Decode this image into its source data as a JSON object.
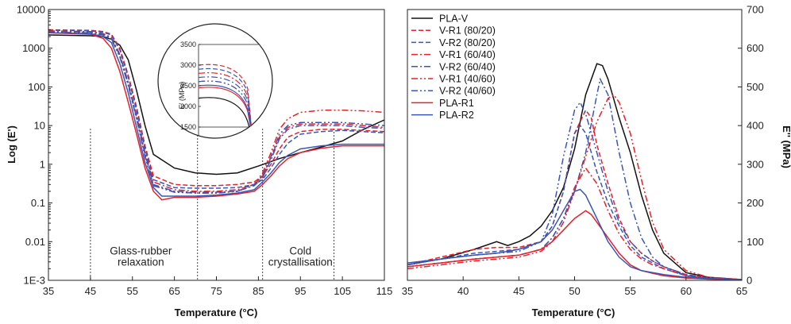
{
  "colors": {
    "pla_v": "#111111",
    "red": "#e8202a",
    "blue": "#3a55b4"
  },
  "chart_data": [
    {
      "type": "line",
      "xlabel": "Temperature (°C)",
      "ylabel": "Log (E')",
      "xlim": [
        35,
        115
      ],
      "ylim_log": [
        0.001,
        10000
      ],
      "y_scale": "log",
      "x_ticks": [
        35,
        45,
        55,
        65,
        75,
        85,
        95,
        105,
        115
      ],
      "y_ticks": [
        {
          "v": 0.001,
          "label": "1E-3"
        },
        {
          "v": 0.01,
          "label": "0.01"
        },
        {
          "v": 0.1,
          "label": "0.1"
        },
        {
          "v": 1,
          "label": "1"
        },
        {
          "v": 10,
          "label": "10"
        },
        {
          "v": 100,
          "label": "100"
        },
        {
          "v": 1000,
          "label": "1000"
        },
        {
          "v": 10000,
          "label": "10000"
        }
      ],
      "vlines": [
        45,
        70.5,
        86,
        103
      ],
      "annotations": [
        {
          "x": 57,
          "y": 0.0047,
          "text": "Glass-rubber"
        },
        {
          "x": 57,
          "y": 0.0024,
          "text": "relaxation"
        },
        {
          "x": 95,
          "y": 0.0047,
          "text": "Cold"
        },
        {
          "x": 95,
          "y": 0.0024,
          "text": "crystallisation"
        }
      ],
      "series": [
        {
          "color": "#111111",
          "dash": "",
          "x": [
            35,
            45,
            48,
            50,
            52,
            54,
            56,
            58,
            60,
            65,
            70,
            75,
            80,
            85,
            90,
            95,
            100,
            105,
            110,
            115
          ],
          "y": [
            2200,
            2100,
            2000,
            1700,
            1200,
            500,
            80,
            10,
            1.8,
            0.8,
            0.6,
            0.55,
            0.6,
            0.9,
            1.4,
            2.0,
            2.8,
            4.0,
            8,
            14
          ]
        },
        {
          "color": "#e8202a",
          "dash": "6,3",
          "x": [
            35,
            45,
            48,
            50,
            52,
            54,
            56,
            58,
            60,
            65,
            70,
            75,
            80,
            84,
            86,
            88,
            90,
            92,
            95,
            100,
            105,
            110,
            115
          ],
          "y": [
            3000,
            2900,
            2700,
            2300,
            1000,
            200,
            30,
            3,
            0.5,
            0.3,
            0.28,
            0.28,
            0.3,
            0.35,
            0.5,
            1.0,
            2.5,
            5,
            7,
            8,
            8,
            7.5,
            7
          ]
        },
        {
          "color": "#3a55b4",
          "dash": "6,3",
          "x": [
            35,
            45,
            48,
            50,
            52,
            54,
            56,
            58,
            60,
            65,
            70,
            75,
            80,
            84,
            86,
            88,
            90,
            92,
            95,
            100,
            105,
            110,
            115
          ],
          "y": [
            2900,
            2800,
            2600,
            2200,
            900,
            180,
            25,
            2.5,
            0.4,
            0.25,
            0.24,
            0.24,
            0.25,
            0.3,
            0.4,
            0.8,
            1.8,
            3.5,
            6,
            7,
            7.5,
            7,
            6.5
          ]
        },
        {
          "color": "#e8202a",
          "dash": "8,3,2,3",
          "x": [
            35,
            45,
            48,
            50,
            52,
            54,
            56,
            58,
            60,
            65,
            70,
            75,
            80,
            84,
            86,
            88,
            90,
            92,
            95,
            100,
            105,
            110,
            115
          ],
          "y": [
            2800,
            2700,
            2400,
            1900,
            700,
            130,
            18,
            2,
            0.35,
            0.22,
            0.2,
            0.2,
            0.22,
            0.3,
            0.5,
            1.5,
            5,
            9,
            11,
            11,
            11,
            10,
            9
          ]
        },
        {
          "color": "#3a55b4",
          "dash": "8,3,2,3",
          "x": [
            35,
            45,
            48,
            50,
            52,
            54,
            56,
            58,
            60,
            65,
            70,
            75,
            80,
            84,
            86,
            88,
            90,
            92,
            95,
            100,
            105,
            110,
            115
          ],
          "y": [
            2700,
            2600,
            2300,
            1800,
            650,
            120,
            16,
            1.8,
            0.3,
            0.2,
            0.19,
            0.19,
            0.2,
            0.28,
            0.45,
            1.3,
            4.5,
            8,
            10,
            10,
            10,
            9,
            8.5
          ]
        },
        {
          "color": "#e8202a",
          "dash": "8,3,2,3,2,3",
          "x": [
            35,
            45,
            48,
            50,
            52,
            54,
            56,
            58,
            60,
            65,
            70,
            75,
            80,
            84,
            86,
            88,
            90,
            92,
            95,
            100,
            105,
            110,
            115
          ],
          "y": [
            2600,
            2500,
            2200,
            1700,
            600,
            110,
            15,
            1.6,
            0.28,
            0.19,
            0.18,
            0.18,
            0.2,
            0.3,
            0.6,
            2,
            8,
            15,
            22,
            25,
            25,
            24,
            22
          ]
        },
        {
          "color": "#3a55b4",
          "dash": "8,3,2,3,2,3",
          "x": [
            35,
            45,
            48,
            50,
            52,
            54,
            56,
            58,
            60,
            65,
            70,
            75,
            80,
            84,
            86,
            88,
            90,
            92,
            95,
            100,
            105,
            110,
            115
          ],
          "y": [
            2600,
            2500,
            2200,
            1700,
            600,
            110,
            15,
            1.6,
            0.28,
            0.19,
            0.18,
            0.18,
            0.2,
            0.3,
            0.5,
            1.6,
            6,
            10,
            12,
            12,
            12,
            11,
            10
          ]
        },
        {
          "color": "#e8202a",
          "dash": "",
          "x": [
            35,
            45,
            48,
            50,
            52,
            54,
            56,
            58,
            60,
            62,
            65,
            70,
            75,
            80,
            84,
            86,
            88,
            90,
            92,
            95,
            100,
            105,
            110,
            115
          ],
          "y": [
            2500,
            2300,
            1800,
            1000,
            250,
            40,
            6,
            0.8,
            0.2,
            0.12,
            0.14,
            0.14,
            0.15,
            0.17,
            0.2,
            0.3,
            0.5,
            0.9,
            1.4,
            2.0,
            2.6,
            3.0,
            3.0,
            3.0
          ]
        },
        {
          "color": "#3a55b4",
          "dash": "",
          "x": [
            35,
            45,
            48,
            50,
            52,
            54,
            56,
            58,
            60,
            62,
            65,
            70,
            75,
            80,
            84,
            86,
            88,
            90,
            92,
            95,
            100,
            105,
            110,
            115
          ],
          "y": [
            2500,
            2400,
            2000,
            1400,
            400,
            70,
            9,
            1.1,
            0.25,
            0.15,
            0.15,
            0.15,
            0.16,
            0.18,
            0.22,
            0.35,
            0.6,
            1.1,
            1.7,
            2.5,
            3.0,
            3.3,
            3.3,
            3.3
          ]
        }
      ]
    },
    {
      "type": "line",
      "xlabel": "Temperature (°C)",
      "ylabel": "E'' (MPa)",
      "xlim": [
        35,
        65
      ],
      "ylim": [
        0,
        700
      ],
      "x_ticks": [
        35,
        40,
        45,
        50,
        55,
        60,
        65
      ],
      "y_ticks": [
        0,
        100,
        200,
        300,
        400,
        500,
        600,
        700
      ],
      "legend_position": "top-left",
      "series": [
        {
          "name": "PLA-V",
          "color": "#111111",
          "dash": "",
          "x": [
            35,
            38,
            41,
            43,
            44,
            45,
            46,
            47,
            48,
            49,
            50,
            51,
            52,
            52.5,
            53,
            54,
            55,
            56,
            57,
            58,
            60,
            62,
            65
          ],
          "y": [
            40,
            55,
            80,
            100,
            90,
            100,
            115,
            140,
            180,
            240,
            340,
            480,
            560,
            555,
            520,
            420,
            330,
            220,
            130,
            70,
            20,
            8,
            2
          ]
        },
        {
          "name": "V-R1 (80/20)",
          "color": "#e8202a",
          "dash": "6,3",
          "x": [
            35,
            38,
            41,
            43,
            45,
            47,
            48,
            49,
            50,
            51,
            51.5,
            52,
            53,
            54,
            55,
            56,
            57,
            58,
            60,
            62,
            65
          ],
          "y": [
            40,
            60,
            80,
            85,
            85,
            100,
            140,
            230,
            380,
            440,
            420,
            350,
            250,
            160,
            100,
            70,
            50,
            35,
            15,
            6,
            2
          ]
        },
        {
          "name": "V-R2 (80/20)",
          "color": "#3a55b4",
          "dash": "6,3",
          "x": [
            35,
            38,
            41,
            43,
            45,
            47,
            48,
            49,
            50,
            50.5,
            51,
            52,
            53,
            54,
            55,
            56,
            57,
            58,
            60,
            62,
            65
          ],
          "y": [
            40,
            55,
            70,
            75,
            80,
            100,
            140,
            230,
            380,
            400,
            380,
            280,
            200,
            140,
            90,
            60,
            45,
            30,
            12,
            5,
            2
          ]
        },
        {
          "name": "V-R1 (60/40)",
          "color": "#e8202a",
          "dash": "8,3,2,3",
          "x": [
            35,
            38,
            41,
            43,
            45,
            47,
            48,
            49,
            50,
            51,
            52,
            53,
            54,
            55,
            56,
            57,
            58,
            60,
            62,
            65
          ],
          "y": [
            35,
            45,
            55,
            60,
            65,
            80,
            110,
            160,
            240,
            290,
            250,
            180,
            120,
            80,
            55,
            40,
            30,
            12,
            5,
            2
          ]
        },
        {
          "name": "V-R2 (60/40)",
          "color": "#3a55b4",
          "dash": "8,3,2,3",
          "x": [
            35,
            38,
            41,
            43,
            45,
            47,
            48,
            49,
            50,
            51,
            52,
            52.3,
            53,
            54,
            55,
            56,
            57,
            58,
            60,
            62,
            65
          ],
          "y": [
            35,
            45,
            55,
            60,
            65,
            80,
            110,
            160,
            230,
            330,
            480,
            520,
            480,
            330,
            200,
            110,
            60,
            35,
            12,
            5,
            2
          ]
        },
        {
          "name": "V-R1 (40/60)",
          "color": "#e8202a",
          "dash": "8,3,2,3,2,3",
          "x": [
            35,
            38,
            41,
            43,
            45,
            47,
            48,
            49,
            50,
            51,
            52,
            53,
            53.5,
            54,
            55,
            56,
            57,
            58,
            60,
            62,
            65
          ],
          "y": [
            30,
            40,
            50,
            55,
            60,
            75,
            100,
            150,
            230,
            320,
            410,
            470,
            480,
            460,
            380,
            260,
            150,
            80,
            25,
            8,
            2
          ]
        },
        {
          "name": "V-R2 (40/60)",
          "color": "#3a55b4",
          "dash": "8,3,2,3,2,3",
          "x": [
            35,
            38,
            41,
            43,
            45,
            47,
            48,
            49,
            50,
            50.5,
            51,
            52,
            53,
            54,
            55,
            56,
            57,
            58,
            60,
            62,
            65
          ],
          "y": [
            40,
            55,
            65,
            70,
            75,
            100,
            170,
            320,
            440,
            460,
            430,
            330,
            230,
            150,
            100,
            70,
            50,
            35,
            15,
            6,
            2
          ]
        },
        {
          "name": "PLA-R1",
          "color": "#e8202a",
          "dash": "",
          "x": [
            35,
            38,
            41,
            43,
            45,
            47,
            48,
            49,
            50,
            51,
            51.5,
            52,
            53,
            54,
            55,
            56,
            57,
            58,
            60,
            62,
            65
          ],
          "y": [
            35,
            45,
            55,
            60,
            65,
            80,
            100,
            130,
            160,
            180,
            170,
            150,
            110,
            70,
            40,
            25,
            18,
            12,
            6,
            3,
            1
          ]
        },
        {
          "name": "PLA-R2",
          "color": "#3a55b4",
          "dash": "",
          "x": [
            35,
            38,
            41,
            43,
            45,
            47,
            48,
            49,
            50,
            50.5,
            51,
            52,
            53,
            54,
            55,
            56,
            57,
            58,
            60,
            62,
            65
          ],
          "y": [
            45,
            55,
            65,
            70,
            80,
            100,
            130,
            180,
            230,
            235,
            220,
            160,
            100,
            60,
            35,
            25,
            20,
            15,
            8,
            4,
            1
          ]
        }
      ]
    }
  ],
  "inset": {
    "ylabel": "E' (MPa)",
    "y_ticks": [
      1500,
      2000,
      2500,
      3000,
      3500
    ]
  }
}
